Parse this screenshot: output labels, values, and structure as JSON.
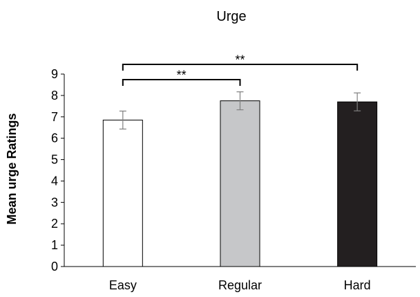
{
  "chart_data": {
    "type": "bar",
    "title": "Urge",
    "xlabel": "",
    "ylabel": "Mean urge Ratings",
    "ylim": [
      0,
      9
    ],
    "yticks": [
      0,
      1,
      2,
      3,
      4,
      5,
      6,
      7,
      8,
      9
    ],
    "categories": [
      "Easy",
      "Regular",
      "Hard"
    ],
    "values": [
      6.85,
      7.75,
      7.7
    ],
    "error": [
      0.42,
      0.42,
      0.42
    ],
    "colors": {
      "Easy": "#ffffff",
      "Regular": "#c6c7c9",
      "Hard": "#231f20"
    },
    "bar_edge_color": "#000000",
    "errorbar_color": "#7f7f7f",
    "grid": false,
    "significance": [
      {
        "from": "Easy",
        "to": "Regular",
        "label": "**"
      },
      {
        "from": "Easy",
        "to": "Hard",
        "label": "**"
      }
    ]
  }
}
